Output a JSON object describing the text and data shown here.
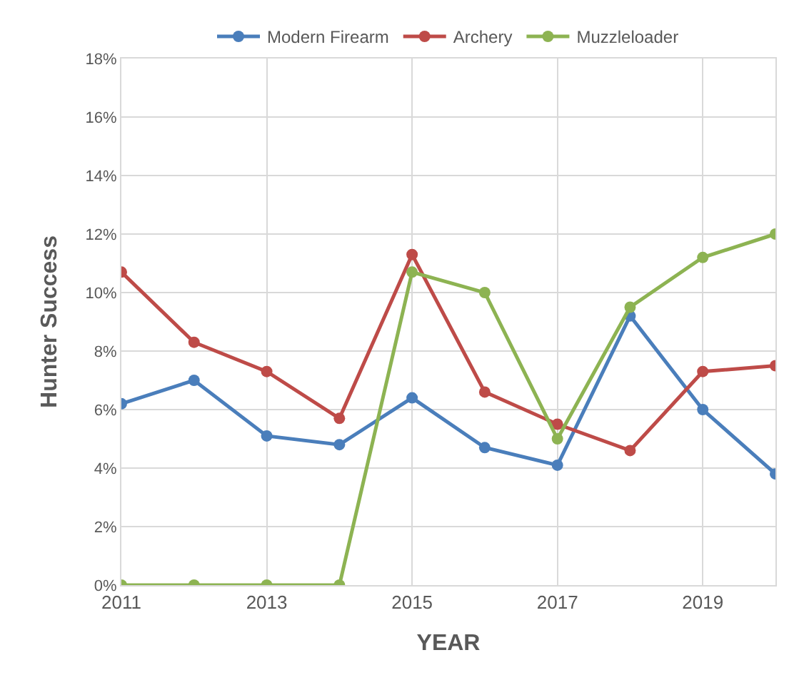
{
  "chart_data": {
    "type": "line",
    "xlabel": "YEAR",
    "ylabel": "Hunter Success",
    "x": [
      2011,
      2012,
      2013,
      2014,
      2015,
      2016,
      2017,
      2018,
      2019,
      2020
    ],
    "series": [
      {
        "name": "Modern Firearm",
        "color": "#4a7ebb",
        "values": [
          6.2,
          7.0,
          5.1,
          4.8,
          6.4,
          4.7,
          4.1,
          9.2,
          6.0,
          3.8
        ]
      },
      {
        "name": "Archery",
        "color": "#be4b48",
        "values": [
          10.7,
          8.3,
          7.3,
          5.7,
          11.3,
          6.6,
          5.5,
          4.6,
          7.3,
          7.5
        ]
      },
      {
        "name": "Muzzleloader",
        "color": "#8db352",
        "values": [
          0,
          0,
          0,
          0,
          10.7,
          10.0,
          5.0,
          9.5,
          11.2,
          12.0
        ]
      }
    ],
    "xlim": [
      2011,
      2020
    ],
    "xticks": [
      2011,
      2013,
      2015,
      2017,
      2019
    ],
    "ylim": [
      0,
      18
    ],
    "yticks": [
      {
        "value": 0,
        "label": "0%"
      },
      {
        "value": 2,
        "label": "2%"
      },
      {
        "value": 4,
        "label": "4%"
      },
      {
        "value": 6,
        "label": "6%"
      },
      {
        "value": 8,
        "label": "8%"
      },
      {
        "value": 10,
        "label": "10%"
      },
      {
        "value": 12,
        "label": "12%"
      },
      {
        "value": 14,
        "label": "14%"
      },
      {
        "value": 16,
        "label": "16%"
      },
      {
        "value": 18,
        "label": "18%"
      }
    ],
    "grid": true,
    "legend": "top",
    "marker": "circle",
    "line_style": "solid"
  }
}
